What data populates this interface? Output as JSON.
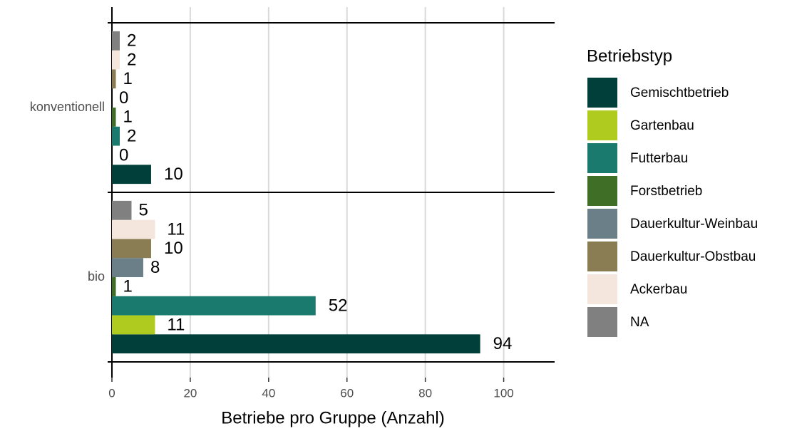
{
  "chart_data": {
    "type": "bar",
    "orientation": "horizontal",
    "x_label": "Betriebe pro Gruppe (Anzahl)",
    "legend_title": "Betriebstyp",
    "legend": "right",
    "grid": true,
    "categories": [
      "konventionell",
      "bio"
    ],
    "series": [
      {
        "name": "Gemischtbetrieb",
        "color": "#003f3a",
        "values": [
          10,
          94
        ]
      },
      {
        "name": "Gartenbau",
        "color": "#b0cb1f",
        "values": [
          0,
          11
        ]
      },
      {
        "name": "Futterbau",
        "color": "#1b7a6e",
        "values": [
          2,
          52
        ]
      },
      {
        "name": "Forstbetrieb",
        "color": "#3f6e27",
        "values": [
          1,
          1
        ]
      },
      {
        "name": "Dauerkultur-Weinbau",
        "color": "#6a7f88",
        "values": [
          0,
          8
        ]
      },
      {
        "name": "Dauerkultur-Obstbau",
        "color": "#8a7c53",
        "values": [
          1,
          10
        ]
      },
      {
        "name": "Ackerbau",
        "color": "#f4e6dc",
        "values": [
          2,
          11
        ]
      },
      {
        "name": "NA",
        "color": "#808080",
        "values": [
          2,
          5
        ]
      }
    ],
    "xlim": [
      0,
      113
    ],
    "xticks": [
      0,
      20,
      40,
      60,
      80,
      100
    ]
  }
}
